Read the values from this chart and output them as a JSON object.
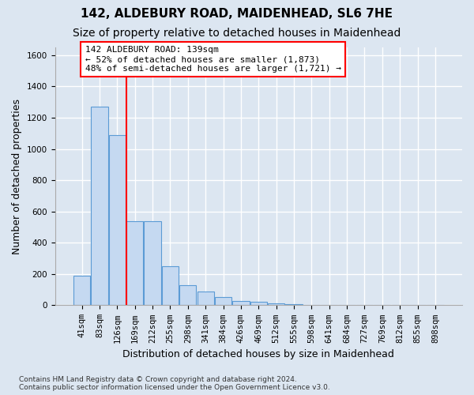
{
  "title_line1": "142, ALDEBURY ROAD, MAIDENHEAD, SL6 7HE",
  "title_line2": "Size of property relative to detached houses in Maidenhead",
  "xlabel": "Distribution of detached houses by size in Maidenhead",
  "ylabel": "Number of detached properties",
  "footnote": "Contains HM Land Registry data © Crown copyright and database right 2024.\nContains public sector information licensed under the Open Government Licence v3.0.",
  "bar_labels": [
    "41sqm",
    "83sqm",
    "126sqm",
    "169sqm",
    "212sqm",
    "255sqm",
    "298sqm",
    "341sqm",
    "384sqm",
    "426sqm",
    "469sqm",
    "512sqm",
    "555sqm",
    "598sqm",
    "641sqm",
    "684sqm",
    "727sqm",
    "769sqm",
    "812sqm",
    "855sqm",
    "898sqm"
  ],
  "bar_values": [
    190,
    1270,
    1090,
    540,
    540,
    250,
    130,
    90,
    55,
    30,
    20,
    10,
    5,
    3,
    2,
    2,
    0,
    0,
    0,
    0,
    0
  ],
  "bar_color": "#c5d9f1",
  "bar_edge_color": "#5b9bd5",
  "background_color": "#dce6f1",
  "grid_color": "#ffffff",
  "vline_x": 2.5,
  "vline_color": "red",
  "ylim": [
    0,
    1650
  ],
  "yticks": [
    0,
    200,
    400,
    600,
    800,
    1000,
    1200,
    1400,
    1600
  ],
  "annotation_text": "142 ALDEBURY ROAD: 139sqm\n← 52% of detached houses are smaller (1,873)\n48% of semi-detached houses are larger (1,721) →",
  "annotation_box_color": "white",
  "annotation_box_edge": "red",
  "title1_fontsize": 11,
  "title2_fontsize": 10,
  "xlabel_fontsize": 9,
  "ylabel_fontsize": 9,
  "tick_fontsize": 7.5,
  "annot_fontsize": 8
}
